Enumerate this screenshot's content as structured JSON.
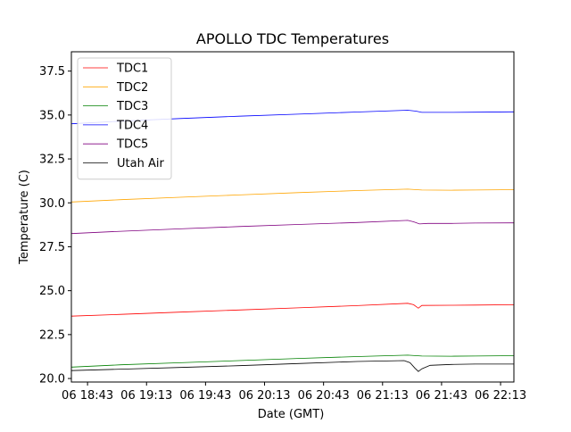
{
  "chart_data": {
    "type": "line",
    "title": "APOLLO TDC Temperatures",
    "xlabel": "Date (GMT)",
    "ylabel": "Temperature (C)",
    "xlim": [
      18.58,
      22.33
    ],
    "ylim": [
      19.8,
      38.6
    ],
    "grid": false,
    "legend_position": "top-left",
    "y_ticks": [
      {
        "value": 20.0,
        "label": "20.0"
      },
      {
        "value": 22.5,
        "label": "22.5"
      },
      {
        "value": 25.0,
        "label": "25.0"
      },
      {
        "value": 27.5,
        "label": "27.5"
      },
      {
        "value": 30.0,
        "label": "30.0"
      },
      {
        "value": 32.5,
        "label": "32.5"
      },
      {
        "value": 35.0,
        "label": "35.0"
      },
      {
        "value": 37.5,
        "label": "37.5"
      }
    ],
    "x_ticks": [
      {
        "value": 18.717,
        "label": "06 18:43"
      },
      {
        "value": 19.217,
        "label": "06 19:13"
      },
      {
        "value": 19.717,
        "label": "06 19:43"
      },
      {
        "value": 20.217,
        "label": "06 20:13"
      },
      {
        "value": 20.717,
        "label": "06 20:43"
      },
      {
        "value": 21.217,
        "label": "06 21:13"
      },
      {
        "value": 21.717,
        "label": "06 21:43"
      },
      {
        "value": 22.217,
        "label": "06 22:13"
      }
    ],
    "series": [
      {
        "name": "TDC1",
        "color": "#ff0000",
        "points": [
          [
            18.58,
            23.55
          ],
          [
            19.0,
            23.65
          ],
          [
            19.5,
            23.78
          ],
          [
            20.0,
            23.9
          ],
          [
            20.5,
            24.02
          ],
          [
            21.0,
            24.15
          ],
          [
            21.43,
            24.28
          ],
          [
            21.48,
            24.2
          ],
          [
            21.52,
            24.0
          ],
          [
            21.55,
            24.16
          ],
          [
            21.8,
            24.17
          ],
          [
            22.0,
            24.18
          ],
          [
            22.33,
            24.2
          ]
        ]
      },
      {
        "name": "TDC2",
        "color": "#ffa500",
        "points": [
          [
            18.58,
            30.05
          ],
          [
            19.0,
            30.18
          ],
          [
            19.5,
            30.32
          ],
          [
            20.0,
            30.45
          ],
          [
            20.5,
            30.58
          ],
          [
            21.0,
            30.7
          ],
          [
            21.43,
            30.78
          ],
          [
            21.55,
            30.73
          ],
          [
            21.8,
            30.72
          ],
          [
            22.0,
            30.73
          ],
          [
            22.33,
            30.75
          ]
        ]
      },
      {
        "name": "TDC3",
        "color": "#008000",
        "points": [
          [
            18.58,
            20.65
          ],
          [
            19.0,
            20.78
          ],
          [
            19.5,
            20.9
          ],
          [
            20.0,
            21.02
          ],
          [
            20.5,
            21.14
          ],
          [
            21.0,
            21.25
          ],
          [
            21.43,
            21.33
          ],
          [
            21.55,
            21.28
          ],
          [
            21.8,
            21.27
          ],
          [
            22.0,
            21.28
          ],
          [
            22.33,
            21.3
          ]
        ]
      },
      {
        "name": "TDC4",
        "color": "#0000ff",
        "points": [
          [
            18.58,
            34.5
          ],
          [
            19.0,
            34.65
          ],
          [
            19.5,
            34.8
          ],
          [
            20.0,
            34.93
          ],
          [
            20.5,
            35.05
          ],
          [
            21.0,
            35.17
          ],
          [
            21.43,
            35.27
          ],
          [
            21.5,
            35.22
          ],
          [
            21.55,
            35.15
          ],
          [
            21.8,
            35.15
          ],
          [
            22.0,
            35.16
          ],
          [
            22.33,
            35.18
          ]
        ]
      },
      {
        "name": "TDC5",
        "color": "#800080",
        "points": [
          [
            18.58,
            28.25
          ],
          [
            19.0,
            28.38
          ],
          [
            19.5,
            28.52
          ],
          [
            20.0,
            28.65
          ],
          [
            20.5,
            28.77
          ],
          [
            21.0,
            28.88
          ],
          [
            21.43,
            29.0
          ],
          [
            21.48,
            28.92
          ],
          [
            21.53,
            28.8
          ],
          [
            21.6,
            28.83
          ],
          [
            21.8,
            28.83
          ],
          [
            22.0,
            28.85
          ],
          [
            22.33,
            28.86
          ]
        ]
      },
      {
        "name": "Utah Air",
        "color": "#000000",
        "points": [
          [
            18.58,
            20.45
          ],
          [
            19.0,
            20.53
          ],
          [
            19.5,
            20.63
          ],
          [
            20.0,
            20.73
          ],
          [
            20.5,
            20.85
          ],
          [
            21.0,
            20.97
          ],
          [
            21.4,
            21.02
          ],
          [
            21.45,
            20.9
          ],
          [
            21.49,
            20.6
          ],
          [
            21.52,
            20.4
          ],
          [
            21.55,
            20.55
          ],
          [
            21.62,
            20.75
          ],
          [
            21.8,
            20.8
          ],
          [
            22.0,
            20.82
          ],
          [
            22.33,
            20.82
          ]
        ]
      }
    ]
  }
}
